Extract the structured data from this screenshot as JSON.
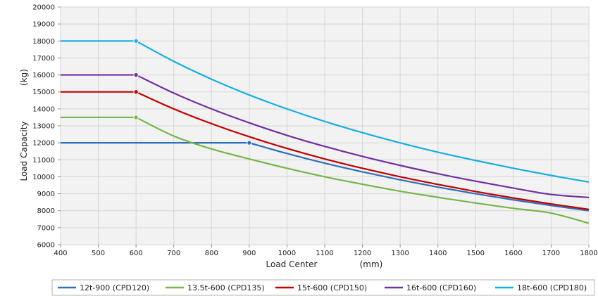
{
  "chart_data": {
    "type": "line",
    "title": "",
    "xlabel": "Load Center",
    "xlabel_unit": "(mm)",
    "ylabel": "Load Capacity",
    "ylabel_unit": "(kg)",
    "xlim": [
      400,
      1800
    ],
    "ylim": [
      6000,
      20000
    ],
    "xticks": [
      400,
      500,
      600,
      700,
      800,
      900,
      1000,
      1100,
      1200,
      1300,
      1400,
      1500,
      1600,
      1700,
      1800
    ],
    "yticks": [
      6000,
      7000,
      8000,
      9000,
      10000,
      11000,
      12000,
      13000,
      14000,
      15000,
      16000,
      17000,
      18000,
      19000,
      20000
    ],
    "grid": true,
    "legend_position": "bottom",
    "series": [
      {
        "name": "12t-900   (CPD120)",
        "color": "#2e6fba",
        "x": [
          400,
          900,
          1000,
          1100,
          1200,
          1300,
          1400,
          1500,
          1600,
          1700,
          1800
        ],
        "y": [
          12000,
          12000,
          11370,
          10800,
          10290,
          9820,
          9390,
          9000,
          8640,
          8310,
          8000
        ],
        "marker_x": 900
      },
      {
        "name": "13.5t-600 (CPD135)",
        "color": "#77b54a",
        "x": [
          400,
          600,
          700,
          800,
          900,
          1000,
          1100,
          1200,
          1300,
          1400,
          1500,
          1600,
          1700,
          1800
        ],
        "y": [
          13500,
          13500,
          12400,
          11640,
          11050,
          10500,
          10000,
          9560,
          9150,
          8790,
          8450,
          8140,
          7860,
          7260
        ],
        "marker_x": 600
      },
      {
        "name": "15t-600   (CPD150)",
        "color": "#c00000",
        "x": [
          400,
          600,
          700,
          800,
          900,
          1000,
          1100,
          1200,
          1300,
          1400,
          1500,
          1600,
          1700,
          1800
        ],
        "y": [
          15000,
          15000,
          14000,
          13130,
          12360,
          11670,
          11050,
          10500,
          10000,
          9550,
          9130,
          8750,
          8400,
          8080
        ],
        "marker_x": 600
      },
      {
        "name": "16t-600   (CPD160)",
        "color": "#7030a0",
        "x": [
          400,
          600,
          700,
          800,
          900,
          1000,
          1100,
          1200,
          1300,
          1400,
          1500,
          1600,
          1700,
          1800
        ],
        "y": [
          16000,
          16000,
          14930,
          14000,
          13180,
          12440,
          11790,
          11200,
          10670,
          10180,
          9740,
          9330,
          8960,
          8780
        ],
        "marker_x": 600
      },
      {
        "name": "18t-600   (CPD180)",
        "color": "#18aee0",
        "x": [
          400,
          600,
          700,
          800,
          900,
          1000,
          1100,
          1200,
          1300,
          1400,
          1500,
          1600,
          1700,
          1800
        ],
        "y": [
          18000,
          18000,
          16800,
          15750,
          14820,
          14000,
          13260,
          12600,
          12000,
          11450,
          10960,
          10500,
          10080,
          9690
        ],
        "marker_x": 600
      }
    ]
  }
}
